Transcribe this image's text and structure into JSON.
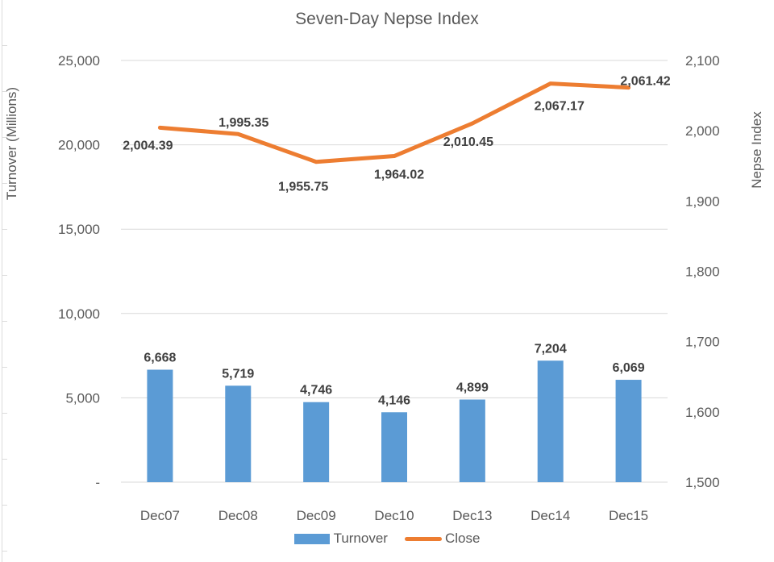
{
  "chart_data": {
    "type": "combo",
    "title": "Seven-Day Nepse Index",
    "categories": [
      "Dec07",
      "Dec08",
      "Dec09",
      "Dec10",
      "Dec13",
      "Dec14",
      "Dec15"
    ],
    "series": [
      {
        "name": "Turnover",
        "type": "bar",
        "axis": "left",
        "values": [
          6668,
          5719,
          4746,
          4146,
          4899,
          7204,
          6069
        ],
        "labels": [
          "6,668",
          "5,719",
          "4,746",
          "4,146",
          "4,899",
          "7,204",
          "6,069"
        ]
      },
      {
        "name": "Close",
        "type": "line",
        "axis": "right",
        "values": [
          2004.39,
          1995.35,
          1955.75,
          1964.02,
          2010.45,
          2067.17,
          2061.42
        ],
        "labels": [
          "2,004.39",
          "1,995.35",
          "1,955.75",
          "1,964.02",
          "2,010.45",
          "2,067.17",
          "2,061.42"
        ],
        "label_offsets": [
          [
            -15,
            27
          ],
          [
            7,
            -9
          ],
          [
            -16,
            36
          ],
          [
            6,
            28
          ],
          [
            -5,
            28
          ],
          [
            11,
            33
          ],
          [
            21,
            -3
          ]
        ]
      }
    ],
    "left_axis": {
      "title": "Turnover (Millions)",
      "min": 0,
      "max": 25000,
      "step": 5000,
      "tick_labels": [
        "25,000",
        "20,000",
        "15,000",
        "10,000",
        "5,000",
        "-"
      ]
    },
    "right_axis": {
      "title": "Nepse Index",
      "min": 1500,
      "max": 2100,
      "step": 100,
      "tick_labels": [
        "2,100",
        "2,000",
        "1,900",
        "1,800",
        "1,700",
        "1,600",
        "1,500"
      ]
    },
    "legend": {
      "position": "bottom",
      "entries": [
        "Turnover",
        "Close"
      ]
    },
    "grid": true,
    "colors": {
      "bar": "#5B9BD5",
      "line": "#ED7D31",
      "grid": "#D9D9D9",
      "text": "#595959",
      "data_label": "#404040"
    }
  }
}
